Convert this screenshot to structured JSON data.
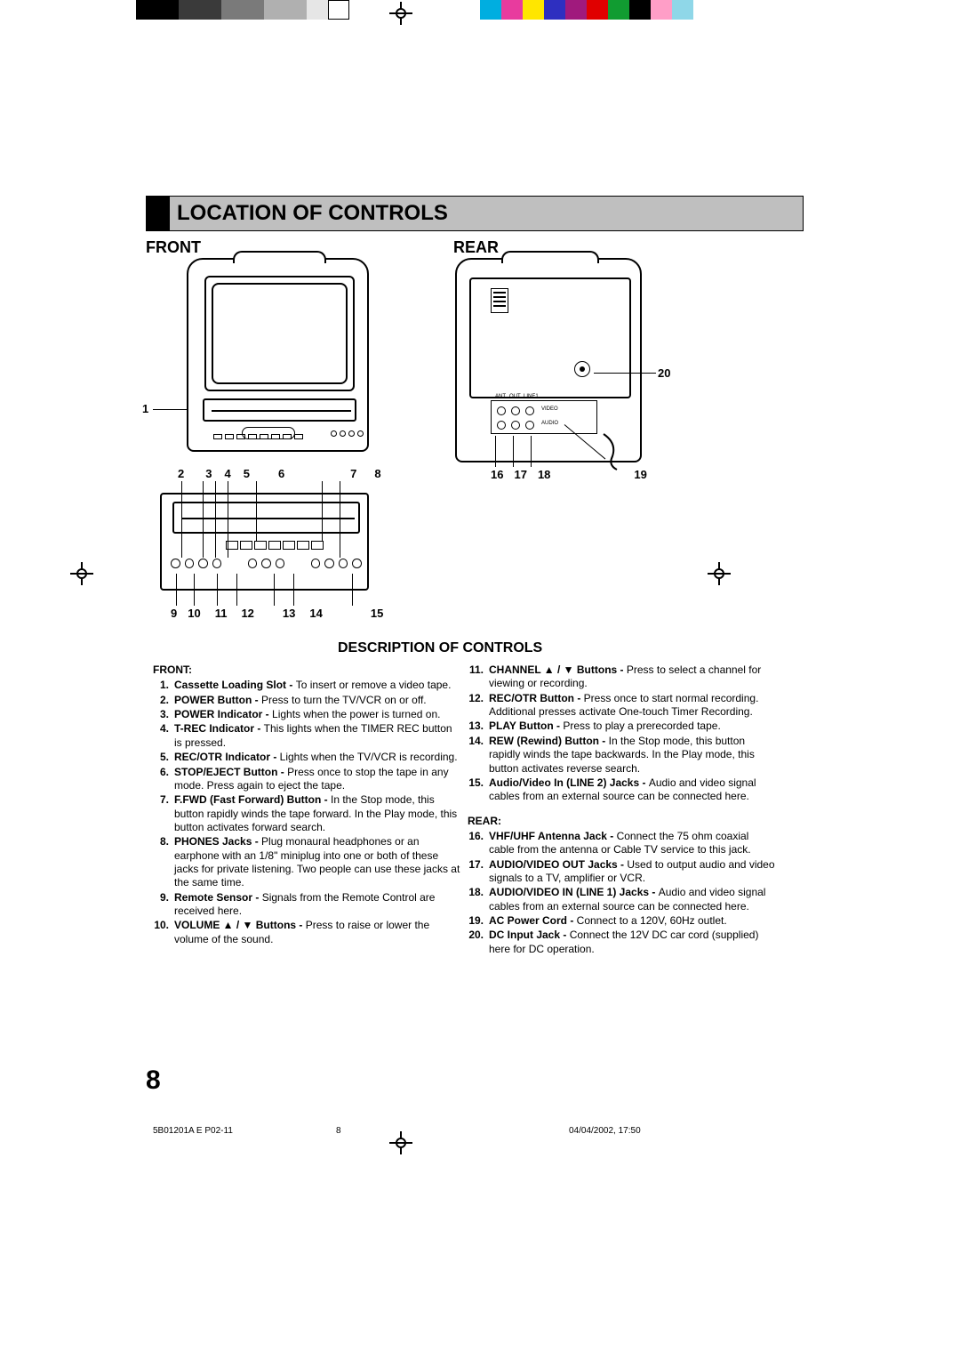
{
  "title": "LOCATION OF CONTROLS",
  "subheadings": {
    "front": "FRONT",
    "rear": "REAR",
    "desc": "DESCRIPTION OF CONTROLS"
  },
  "color_bar_left": [
    "#000000",
    "#000000",
    "#3a3a3a",
    "#3a3a3a",
    "#7a7a7a",
    "#7a7a7a",
    "#b0b0b0",
    "#b0b0b0",
    "#e6e6e6",
    "#ffffff"
  ],
  "color_bar_right": [
    "#00aee0",
    "#e83b9e",
    "#ffe600",
    "#2e2fc0",
    "#a01a7d",
    "#e00000",
    "#119c31",
    "#000000",
    "#ff9ec7",
    "#8fd7e8"
  ],
  "callouts": {
    "c1": "1",
    "row_top": [
      "2",
      "3",
      "4",
      "5",
      "6",
      "7",
      "8"
    ],
    "row_bot": [
      "9",
      "10",
      "11",
      "12",
      "13",
      "14",
      "15"
    ],
    "rear_row": [
      "16",
      "17",
      "18",
      "19"
    ],
    "c20": "20"
  },
  "left_col": {
    "heading": "FRONT:",
    "items": [
      {
        "n": "1.",
        "b": "Cassette Loading Slot - ",
        "t": "To insert or remove a video tape."
      },
      {
        "n": "2.",
        "b": "POWER Button - ",
        "t": "Press to turn the TV/VCR on or off."
      },
      {
        "n": "3.",
        "b": "POWER Indicator - ",
        "t": "Lights when the power is turned on."
      },
      {
        "n": "4.",
        "b": "T-REC Indicator - ",
        "t": "This lights when the TIMER REC button is pressed."
      },
      {
        "n": "5.",
        "b": "REC/OTR Indicator - ",
        "t": "Lights when the TV/VCR is recording."
      },
      {
        "n": "6.",
        "b": "STOP/EJECT Button - ",
        "t": "Press once to stop the tape in any mode. Press again to eject the tape."
      },
      {
        "n": "7.",
        "b": "F.FWD (Fast Forward) Button - ",
        "t": "In the Stop mode, this button rapidly winds the tape forward. In the Play mode, this button activates forward search."
      },
      {
        "n": "8.",
        "b": "PHONES Jacks - ",
        "t": "Plug monaural headphones or an earphone with an 1/8\" miniplug into one or both of these jacks for private listening. Two people can use these jacks at the same time."
      },
      {
        "n": "9.",
        "b": "Remote Sensor - ",
        "t": "Signals from the Remote Control are received here."
      },
      {
        "n": "10.",
        "b": "VOLUME ▲ / ▼ Buttons - ",
        "t": "Press to raise or lower the volume of the sound."
      }
    ]
  },
  "right_col": {
    "items_top": [
      {
        "n": "11.",
        "b": "CHANNEL ▲ / ▼ Buttons - ",
        "t": "Press to select a channel for viewing or recording."
      },
      {
        "n": "12.",
        "b": "REC/OTR Button - ",
        "t": "Press once to start normal recording. Additional presses activate One-touch Timer Recording."
      },
      {
        "n": "13.",
        "b": "PLAY Button - ",
        "t": "Press to play a prerecorded tape."
      },
      {
        "n": "14.",
        "b": "REW (Rewind) Button - ",
        "t": "In the Stop mode, this button rapidly winds the tape backwards. In the Play mode, this button activates reverse search."
      },
      {
        "n": "15.",
        "b": "Audio/Video In (LINE 2) Jacks - ",
        "t": "Audio and video signal cables from an external source can be connected here."
      }
    ],
    "heading": "REAR:",
    "items_bot": [
      {
        "n": "16.",
        "b": "VHF/UHF Antenna Jack - ",
        "t": "Connect the 75 ohm coaxial cable from the antenna or Cable TV service to this jack."
      },
      {
        "n": "17.",
        "b": "AUDIO/VIDEO OUT Jacks - ",
        "t": "Used to output audio and video signals to a TV, amplifier or VCR."
      },
      {
        "n": "18.",
        "b": "AUDIO/VIDEO IN (LINE 1) Jacks - ",
        "t": "Audio and video signal cables from an external source can be connected here."
      },
      {
        "n": "19.",
        "b": "AC Power Cord - ",
        "t": "Connect to a 120V, 60Hz outlet."
      },
      {
        "n": "20.",
        "b": "DC Input Jack - ",
        "t": "Connect the 12V DC car cord (supplied) here for DC operation."
      }
    ]
  },
  "io_labels": {
    "video": "VIDEO",
    "audio": "AUDIO",
    "ant": "ANT",
    "out": "OUT",
    "line1": "LINE1"
  },
  "page_number": "8",
  "footer": {
    "left": "5B01201A E P02-11",
    "mid": "8",
    "right": "04/04/2002, 17:50"
  }
}
